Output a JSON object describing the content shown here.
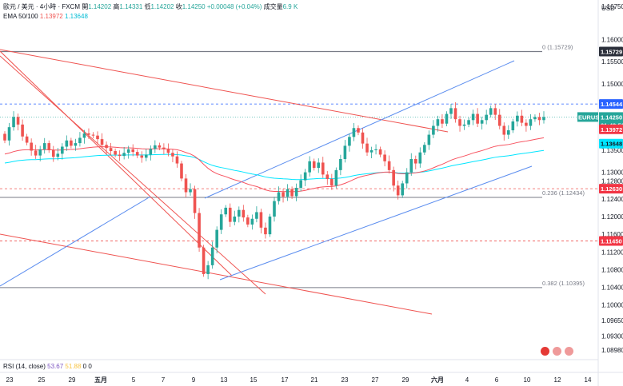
{
  "header": {
    "symbol_line": "歐元 / 美元 · 4小時 · FXCM",
    "ohlc": [
      {
        "label": "開",
        "value": "1.14202"
      },
      {
        "label": "高",
        "value": "1.14331"
      },
      {
        "label": "低",
        "value": "1.14202"
      },
      {
        "label": "收",
        "value": "1.14250"
      }
    ],
    "change": "+0.00048 (+0.04%)",
    "volume_label": "成交量",
    "volume_value": "6.9 K",
    "ema_label": "EMA 50/100",
    "ema_values": [
      "1.13972",
      "1.13648"
    ],
    "currency": "USD"
  },
  "rsi": {
    "label": "RSI (14, close)",
    "values": [
      "53.67",
      "51.88",
      "0",
      "0"
    ]
  },
  "price_tags": {
    "fib0": "1.15729",
    "level_high": "1.14544",
    "current_symbol": "EURUSD",
    "current_price": "1.14250",
    "countdown": "01:43:56",
    "ema50": "1.13972",
    "ema100": "1.13648",
    "level_mid": "1.12630",
    "level_low": "1.11450"
  },
  "fib_labels": {
    "f0": "0 (1.15729)",
    "f236": "0.236 (1.12434)",
    "f382": "0.382 (1.10395)"
  },
  "colors": {
    "up": "#26a69a",
    "down": "#ef5350",
    "ema50": "#f7525f",
    "ema100": "#00e5ff",
    "trend_blue": "#5b8def",
    "trend_red": "#ef5350",
    "fib": "#787b86",
    "dashed_red": "#ef5350",
    "dashed_blue": "#2962ff"
  },
  "chart_data": {
    "type": "candlestick",
    "ylim": [
      1.0855,
      1.1675
    ],
    "x_ticks": [
      "23",
      "25",
      "29",
      "五月",
      "5",
      "7",
      "9",
      "13",
      "15",
      "17",
      "21",
      "23",
      "27",
      "29",
      "六月",
      "4",
      "6",
      "10",
      "12",
      "14"
    ],
    "y_ticks": [
      "1.16750",
      "1.16000",
      "1.15500",
      "1.15000",
      "1.14500",
      "1.14000",
      "1.13500",
      "1.13000",
      "1.12800",
      "1.12400",
      "1.12000",
      "1.11600",
      "1.11200",
      "1.10800",
      "1.10400",
      "1.10000",
      "1.09650",
      "1.09300",
      "1.08980"
    ],
    "close_series": [
      1.1372,
      1.1402,
      1.1425,
      1.1408,
      1.1381,
      1.1367,
      1.1349,
      1.1338,
      1.1352,
      1.1366,
      1.135,
      1.1335,
      1.1342,
      1.1358,
      1.1372,
      1.136,
      1.1366,
      1.1378,
      1.1388,
      1.1385,
      1.1383,
      1.1375,
      1.1362,
      1.1355,
      1.1348,
      1.134,
      1.1337,
      1.1344,
      1.1352,
      1.1346,
      1.1338,
      1.1333,
      1.134,
      1.1353,
      1.1361,
      1.1356,
      1.1352,
      1.1344,
      1.1336,
      1.132,
      1.1286,
      1.1255,
      1.1262,
      1.1208,
      1.113,
      1.107,
      1.109,
      1.113,
      1.117,
      1.1205,
      1.122,
      1.1188,
      1.12,
      1.1215,
      1.1198,
      1.1182,
      1.1195,
      1.121,
      1.1175,
      1.116,
      1.12,
      1.1235,
      1.1255,
      1.1245,
      1.1262,
      1.1246,
      1.1265,
      1.1282,
      1.13,
      1.1325,
      1.131,
      1.1322,
      1.1295,
      1.1285,
      1.127,
      1.1305,
      1.133,
      1.136,
      1.138,
      1.14,
      1.139,
      1.1365,
      1.1345,
      1.135,
      1.1352,
      1.134,
      1.1325,
      1.1305,
      1.127,
      1.1248,
      1.1275,
      1.13,
      1.133,
      1.132,
      1.1345,
      1.1362,
      1.1385,
      1.1405,
      1.142,
      1.141,
      1.1432,
      1.1445,
      1.142,
      1.1405,
      1.1408,
      1.1418,
      1.1432,
      1.141,
      1.1418,
      1.143,
      1.1445,
      1.143,
      1.1405,
      1.1385,
      1.1395,
      1.1415,
      1.1428,
      1.1412,
      1.1405,
      1.142,
      1.1425,
      1.1418,
      1.1425
    ],
    "ema50_last": 1.13972,
    "ema100_last": 1.13648,
    "horizontal_levels": [
      1.15729,
      1.14544,
      1.1263,
      1.12434,
      1.1145,
      1.10395
    ],
    "fib_levels": [
      {
        "ratio": 0,
        "price": 1.15729
      },
      {
        "ratio": 0.236,
        "price": 1.12434
      },
      {
        "ratio": 0.382,
        "price": 1.10395
      }
    ],
    "rsi": [
      53.67,
      51.88
    ]
  }
}
